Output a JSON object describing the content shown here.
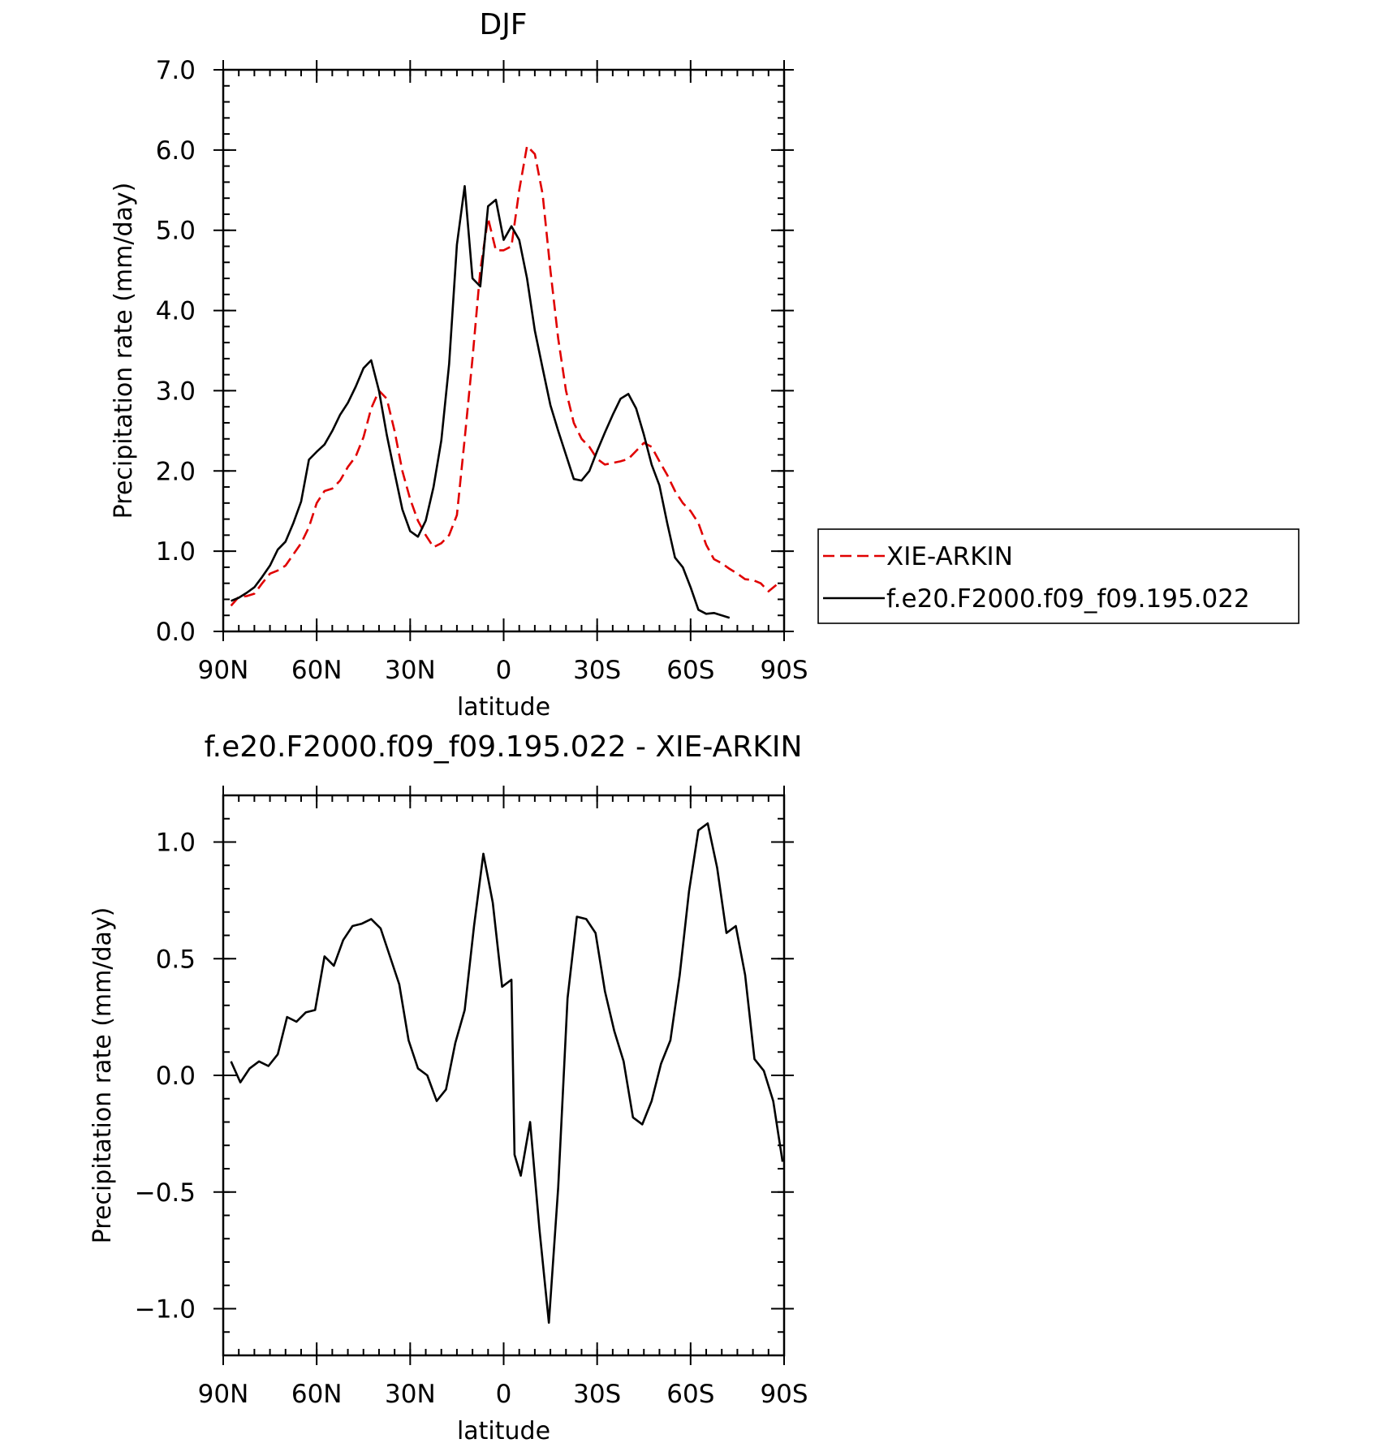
{
  "chart_data": [
    {
      "type": "line",
      "title": "DJF",
      "xlabel": "latitude",
      "ylabel": "Precipitation rate (mm/day)",
      "xlim": [
        90,
        -90
      ],
      "ylim": [
        0,
        7
      ],
      "x_ticks": [
        {
          "value": 90,
          "label": "90N"
        },
        {
          "value": 60,
          "label": "60N"
        },
        {
          "value": 30,
          "label": "30N"
        },
        {
          "value": 0,
          "label": "0"
        },
        {
          "value": -30,
          "label": "30S"
        },
        {
          "value": -60,
          "label": "60S"
        },
        {
          "value": -90,
          "label": "90S"
        }
      ],
      "y_ticks": [
        {
          "value": 0,
          "label": "0.0"
        },
        {
          "value": 1,
          "label": "1.0"
        },
        {
          "value": 2,
          "label": "2.0"
        },
        {
          "value": 3,
          "label": "3.0"
        },
        {
          "value": 4,
          "label": "4.0"
        },
        {
          "value": 5,
          "label": "5.0"
        },
        {
          "value": 6,
          "label": "6.0"
        },
        {
          "value": 7,
          "label": "7.0"
        }
      ],
      "legend_position": "right",
      "series": [
        {
          "name": "XIE-ARKIN",
          "color": "#e00000",
          "dash": "dashed",
          "points": [
            [
              87.5,
              0.32
            ],
            [
              85,
              0.43
            ],
            [
              82.5,
              0.44
            ],
            [
              80,
              0.47
            ],
            [
              77.5,
              0.6
            ],
            [
              75,
              0.72
            ],
            [
              72.5,
              0.76
            ],
            [
              70,
              0.82
            ],
            [
              67.5,
              0.96
            ],
            [
              65,
              1.1
            ],
            [
              62.5,
              1.3
            ],
            [
              60,
              1.6
            ],
            [
              57.5,
              1.75
            ],
            [
              55,
              1.78
            ],
            [
              52.5,
              1.88
            ],
            [
              50,
              2.05
            ],
            [
              47.5,
              2.18
            ],
            [
              45,
              2.42
            ],
            [
              42.5,
              2.78
            ],
            [
              40,
              3.0
            ],
            [
              37.5,
              2.9
            ],
            [
              35,
              2.5
            ],
            [
              32.5,
              2.0
            ],
            [
              30,
              1.65
            ],
            [
              27.5,
              1.38
            ],
            [
              25,
              1.2
            ],
            [
              22.5,
              1.05
            ],
            [
              20,
              1.1
            ],
            [
              17.5,
              1.2
            ],
            [
              15,
              1.45
            ],
            [
              12.5,
              2.4
            ],
            [
              10,
              3.4
            ],
            [
              7.5,
              4.5
            ],
            [
              5,
              5.15
            ],
            [
              2.5,
              4.75
            ],
            [
              0,
              4.75
            ],
            [
              -2.5,
              4.8
            ],
            [
              -5,
              5.5
            ],
            [
              -7.5,
              6.05
            ],
            [
              -10,
              5.95
            ],
            [
              -12.5,
              5.45
            ],
            [
              -15,
              4.5
            ],
            [
              -17.5,
              3.65
            ],
            [
              -20,
              3.0
            ],
            [
              -22.5,
              2.6
            ],
            [
              -25,
              2.4
            ],
            [
              -27.5,
              2.3
            ],
            [
              -30,
              2.15
            ],
            [
              -32.5,
              2.08
            ],
            [
              -35,
              2.1
            ],
            [
              -37.5,
              2.12
            ],
            [
              -40,
              2.15
            ],
            [
              -42.5,
              2.25
            ],
            [
              -45,
              2.35
            ],
            [
              -47.5,
              2.3
            ],
            [
              -50,
              2.12
            ],
            [
              -52.5,
              1.95
            ],
            [
              -55,
              1.75
            ],
            [
              -57.5,
              1.6
            ],
            [
              -60,
              1.5
            ],
            [
              -62.5,
              1.35
            ],
            [
              -65,
              1.08
            ],
            [
              -67.5,
              0.9
            ],
            [
              -70,
              0.85
            ],
            [
              -72.5,
              0.78
            ],
            [
              -75,
              0.72
            ],
            [
              -77.5,
              0.65
            ],
            [
              -80,
              0.64
            ],
            [
              -82.5,
              0.6
            ],
            [
              -85,
              0.5
            ],
            [
              -87.5,
              0.58
            ]
          ]
        },
        {
          "name": "f.e20.F2000.f09_f09.195.022",
          "color": "#000000",
          "dash": "solid",
          "points": [
            [
              87.5,
              0.38
            ],
            [
              85,
              0.42
            ],
            [
              82.5,
              0.48
            ],
            [
              80,
              0.55
            ],
            [
              77.5,
              0.68
            ],
            [
              75,
              0.82
            ],
            [
              72.5,
              1.02
            ],
            [
              70,
              1.12
            ],
            [
              67.5,
              1.35
            ],
            [
              65,
              1.62
            ],
            [
              62.5,
              2.14
            ],
            [
              60,
              2.24
            ],
            [
              57.5,
              2.33
            ],
            [
              55,
              2.5
            ],
            [
              52.5,
              2.7
            ],
            [
              50,
              2.85
            ],
            [
              47.5,
              3.05
            ],
            [
              45,
              3.28
            ],
            [
              42.5,
              3.38
            ],
            [
              40,
              3.0
            ],
            [
              37.5,
              2.45
            ],
            [
              35,
              1.98
            ],
            [
              32.5,
              1.52
            ],
            [
              30,
              1.25
            ],
            [
              27.5,
              1.18
            ],
            [
              25,
              1.38
            ],
            [
              22.5,
              1.8
            ],
            [
              20,
              2.38
            ],
            [
              17.5,
              3.33
            ],
            [
              15,
              4.82
            ],
            [
              12.5,
              5.55
            ],
            [
              10,
              4.4
            ],
            [
              7.5,
              4.3
            ],
            [
              5,
              5.3
            ],
            [
              2.5,
              5.38
            ],
            [
              0,
              4.88
            ],
            [
              -2.5,
              5.05
            ],
            [
              -5,
              4.88
            ],
            [
              -7.5,
              4.4
            ],
            [
              -10,
              3.75
            ],
            [
              -12.5,
              3.28
            ],
            [
              -15,
              2.82
            ],
            [
              -17.5,
              2.5
            ],
            [
              -20,
              2.2
            ],
            [
              -22.5,
              1.9
            ],
            [
              -25,
              1.88
            ],
            [
              -27.5,
              2.0
            ],
            [
              -30,
              2.25
            ],
            [
              -32.5,
              2.48
            ],
            [
              -35,
              2.7
            ],
            [
              -37.5,
              2.9
            ],
            [
              -40,
              2.96
            ],
            [
              -42.5,
              2.78
            ],
            [
              -45,
              2.45
            ],
            [
              -47.5,
              2.08
            ],
            [
              -50,
              1.82
            ],
            [
              -52.5,
              1.35
            ],
            [
              -55,
              0.92
            ],
            [
              -57.5,
              0.8
            ],
            [
              -60,
              0.55
            ],
            [
              -62.5,
              0.27
            ],
            [
              -65,
              0.22
            ],
            [
              -67.5,
              0.23
            ],
            [
              -70,
              0.2
            ],
            [
              -72.5,
              0.17
            ]
          ]
        }
      ]
    },
    {
      "type": "line",
      "title": "f.e20.F2000.f09_f09.195.022 - XIE-ARKIN",
      "xlabel": "latitude",
      "ylabel": "Precipitation rate (mm/day)",
      "xlim": [
        90,
        -90
      ],
      "ylim": [
        -1.2,
        1.2
      ],
      "x_ticks": [
        {
          "value": 90,
          "label": "90N"
        },
        {
          "value": 60,
          "label": "60N"
        },
        {
          "value": 30,
          "label": "30N"
        },
        {
          "value": 0,
          "label": "0"
        },
        {
          "value": -30,
          "label": "30S"
        },
        {
          "value": -60,
          "label": "60S"
        },
        {
          "value": -90,
          "label": "90S"
        }
      ],
      "y_ticks": [
        {
          "value": -1,
          "label": "−1.0"
        },
        {
          "value": -0.5,
          "label": "−0.5"
        },
        {
          "value": 0,
          "label": "0.0"
        },
        {
          "value": 0.5,
          "label": "0.5"
        },
        {
          "value": 1,
          "label": "1.0"
        }
      ],
      "series": [
        {
          "name": "",
          "color": "#000000",
          "dash": "solid",
          "points": [
            [
              87.5,
              0.06
            ],
            [
              84.5,
              -0.03
            ],
            [
              81.5,
              0.03
            ],
            [
              78.5,
              0.06
            ],
            [
              75.5,
              0.04
            ],
            [
              72.5,
              0.09
            ],
            [
              69.5,
              0.25
            ],
            [
              66.5,
              0.23
            ],
            [
              63.5,
              0.27
            ],
            [
              60.5,
              0.28
            ],
            [
              57.5,
              0.51
            ],
            [
              54.5,
              0.47
            ],
            [
              51.5,
              0.58
            ],
            [
              48.5,
              0.64
            ],
            [
              45.5,
              0.65
            ],
            [
              42.5,
              0.67
            ],
            [
              39.5,
              0.63
            ],
            [
              36.5,
              0.51
            ],
            [
              33.5,
              0.39
            ],
            [
              30.5,
              0.15
            ],
            [
              27.5,
              0.03
            ],
            [
              24.5,
              0.0
            ],
            [
              21.5,
              -0.11
            ],
            [
              18.5,
              -0.06
            ],
            [
              15.5,
              0.14
            ],
            [
              12.5,
              0.28
            ],
            [
              9.5,
              0.64
            ],
            [
              6.5,
              0.95
            ],
            [
              3.5,
              0.74
            ],
            [
              0.5,
              0.38
            ],
            [
              -2.5,
              0.41
            ],
            [
              -3.5,
              -0.34
            ],
            [
              -5.5,
              -0.43
            ],
            [
              -8.5,
              -0.2
            ],
            [
              -11.5,
              -0.66
            ],
            [
              -14.5,
              -1.06
            ],
            [
              -17.5,
              -0.48
            ],
            [
              -20.5,
              0.33
            ],
            [
              -23.5,
              0.68
            ],
            [
              -26.5,
              0.67
            ],
            [
              -29.5,
              0.61
            ],
            [
              -32.5,
              0.36
            ],
            [
              -35.5,
              0.19
            ],
            [
              -38.5,
              0.06
            ],
            [
              -41.5,
              -0.18
            ],
            [
              -44.5,
              -0.21
            ],
            [
              -47.5,
              -0.11
            ],
            [
              -50.5,
              0.05
            ],
            [
              -53.5,
              0.15
            ],
            [
              -56.5,
              0.43
            ],
            [
              -59.5,
              0.79
            ],
            [
              -62.5,
              1.05
            ],
            [
              -65.5,
              1.08
            ],
            [
              -68.5,
              0.89
            ],
            [
              -71.5,
              0.61
            ],
            [
              -74.5,
              0.64
            ],
            [
              -77.5,
              0.43
            ],
            [
              -80.5,
              0.07
            ],
            [
              -83.5,
              0.02
            ],
            [
              -86.5,
              -0.11
            ],
            [
              -89.5,
              -0.37
            ]
          ]
        }
      ]
    }
  ]
}
